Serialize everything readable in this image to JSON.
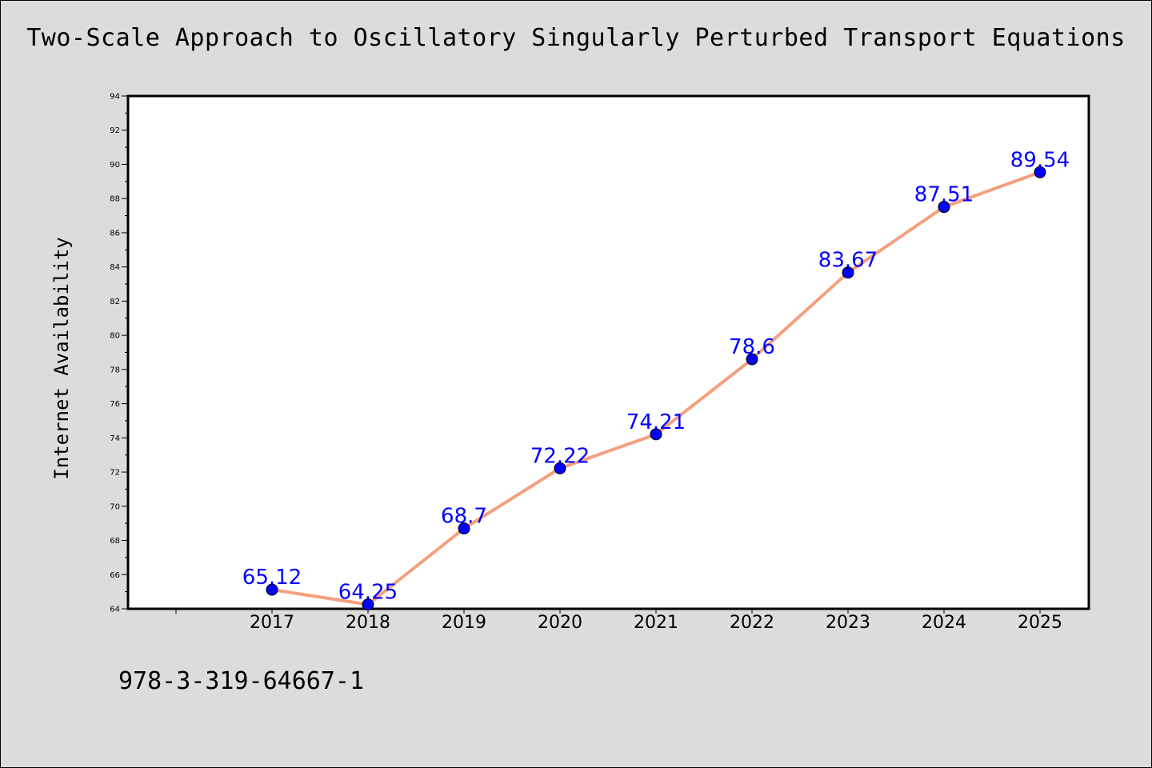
{
  "footer_text": "978-3-319-64667-1",
  "colors": {
    "background": "#dcdcdc",
    "plot_background": "#ffffff",
    "line": "#f4a07e",
    "marker": "#0000ff",
    "data_label": "#0000ff"
  },
  "chart_data": {
    "type": "line",
    "title": "Two-Scale Approach to Oscillatory Singularly Perturbed Transport Equations",
    "xlabel": "",
    "ylabel": "Internet Availability",
    "categories": [
      "2017",
      "2018",
      "2019",
      "2020",
      "2021",
      "2022",
      "2023",
      "2024",
      "2025"
    ],
    "series": [
      {
        "values": [
          65.12,
          64.25,
          68.7,
          72.22,
          74.21,
          78.6,
          83.67,
          87.51,
          89.54
        ],
        "data_labels": [
          "65.12",
          "64.25",
          "68.7",
          "72.22",
          "74.21",
          "78.6",
          "83.67",
          "87.51",
          "89.54"
        ]
      }
    ],
    "ylim": [
      64,
      94
    ],
    "yticks": [
      64,
      66,
      68,
      70,
      72,
      74,
      76,
      78,
      80,
      82,
      84,
      86,
      88,
      90,
      92,
      94
    ],
    "grid": false,
    "legend": "none"
  }
}
